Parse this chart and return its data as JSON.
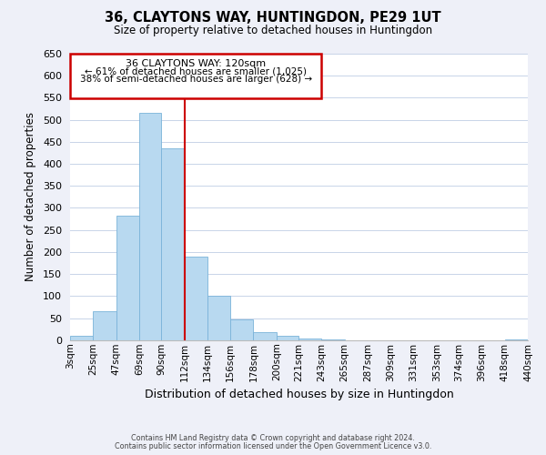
{
  "title": "36, CLAYTONS WAY, HUNTINGDON, PE29 1UT",
  "subtitle": "Size of property relative to detached houses in Huntingdon",
  "xlabel": "Distribution of detached houses by size in Huntingdon",
  "ylabel": "Number of detached properties",
  "bin_labels": [
    "3sqm",
    "25sqm",
    "47sqm",
    "69sqm",
    "90sqm",
    "112sqm",
    "134sqm",
    "156sqm",
    "178sqm",
    "200sqm",
    "221sqm",
    "243sqm",
    "265sqm",
    "287sqm",
    "309sqm",
    "331sqm",
    "353sqm",
    "374sqm",
    "396sqm",
    "418sqm",
    "440sqm"
  ],
  "bar_heights": [
    10,
    65,
    283,
    515,
    435,
    190,
    100,
    47,
    19,
    10,
    3,
    1,
    0,
    0,
    0,
    0,
    0,
    0,
    0,
    2
  ],
  "bar_color": "#b8d9f0",
  "bar_edge_color": "#7ab3d9",
  "property_line_x": 112,
  "property_line_color": "#cc0000",
  "ylim": [
    0,
    650
  ],
  "yticks": [
    0,
    50,
    100,
    150,
    200,
    250,
    300,
    350,
    400,
    450,
    500,
    550,
    600,
    650
  ],
  "annotation_title": "36 CLAYTONS WAY: 120sqm",
  "annotation_line1": "← 61% of detached houses are smaller (1,025)",
  "annotation_line2": "38% of semi-detached houses are larger (628) →",
  "footer_line1": "Contains HM Land Registry data © Crown copyright and database right 2024.",
  "footer_line2": "Contains public sector information licensed under the Open Government Licence v3.0.",
  "background_color": "#eef0f8",
  "plot_background": "#ffffff",
  "grid_color": "#c8d4e8",
  "bin_edges": [
    3,
    25,
    47,
    69,
    90,
    112,
    134,
    156,
    178,
    200,
    221,
    243,
    265,
    287,
    309,
    331,
    353,
    374,
    396,
    418,
    440
  ]
}
